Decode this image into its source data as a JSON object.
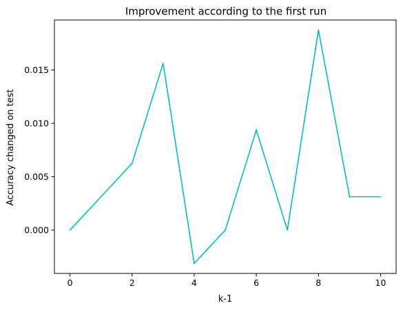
{
  "chart_data": {
    "type": "line",
    "title": "Improvement according to the first run",
    "xlabel": "k-1",
    "ylabel": "Accuracy changed on test",
    "x": [
      0,
      1,
      2,
      3,
      4,
      5,
      6,
      7,
      8,
      9,
      10
    ],
    "series": [
      {
        "values": [
          0.0,
          0.003125,
          0.00625,
          0.015625,
          -0.003125,
          0.0,
          0.009375,
          0.0,
          0.01875,
          0.003125,
          0.003125
        ],
        "color": "#00bfbf"
      }
    ],
    "xlim": [
      -0.5,
      10.5
    ],
    "ylim": [
      -0.0040625,
      0.0196875
    ],
    "xticks": [
      0,
      2,
      4,
      6,
      8,
      10
    ],
    "xtick_labels": [
      "0",
      "2",
      "4",
      "6",
      "8",
      "10"
    ],
    "yticks": [
      0.0,
      0.005,
      0.01,
      0.015
    ],
    "ytick_labels": [
      "0.000",
      "0.005",
      "0.010",
      "0.015"
    ],
    "grid": false,
    "legend": "none"
  }
}
